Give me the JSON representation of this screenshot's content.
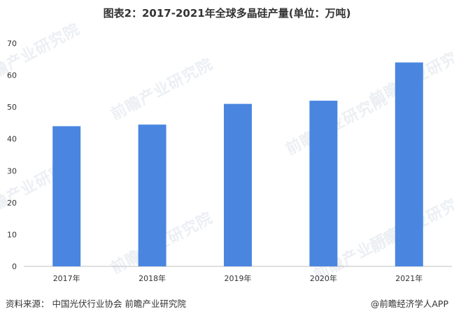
{
  "title": "图表2：2017-2021年全球多晶硅产量(单位：万吨)",
  "source": "资料来源：  中国光伏行业协会 前瞻产业研究院",
  "brand": "@前瞻经济学人APP",
  "watermark": "前瞻产业研究院",
  "colors": {
    "bar": "#4a86e0",
    "axis": "#bfbfbf",
    "text": "#333333"
  },
  "chart_data": {
    "type": "bar",
    "categories": [
      "2017年",
      "2018年",
      "2019年",
      "2020年",
      "2021年"
    ],
    "values": [
      44,
      44.5,
      51,
      52,
      64
    ],
    "yticks": [
      0,
      10,
      20,
      30,
      40,
      50,
      60,
      70
    ],
    "ylim": [
      0,
      70
    ],
    "grid": false
  }
}
